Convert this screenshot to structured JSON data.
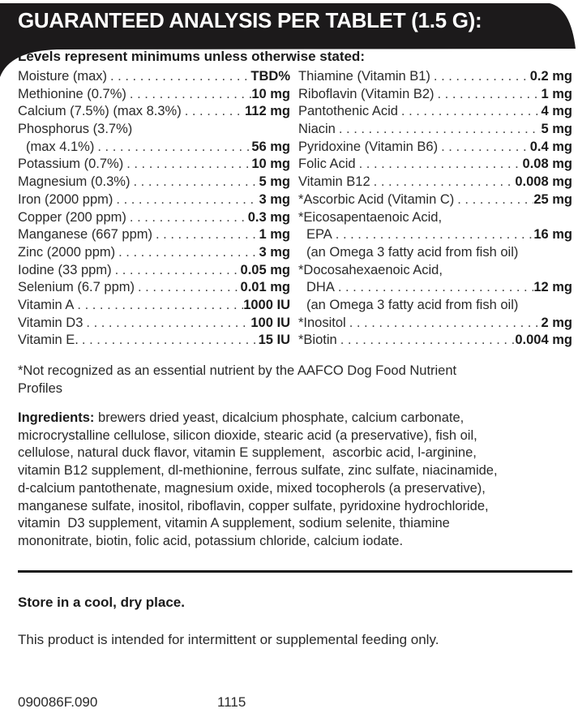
{
  "header": {
    "title": "GUARANTEED ANALYSIS PER TABLET (1.5 G):",
    "band_color": "#1c1a1b"
  },
  "subtitle": "Levels represent minimums unless otherwise stated:",
  "left_column": [
    {
      "label": "Moisture (max)",
      "value": "TBD%"
    },
    {
      "label": "Methionine (0.7%)",
      "value": "10 mg"
    },
    {
      "label": "Calcium (7.5%) (max 8.3%)",
      "value": "112 mg"
    },
    {
      "label": "Phosphorus (3.7%)",
      "value": ""
    },
    {
      "label": "(max 4.1%)",
      "value": "56 mg",
      "indent": true
    },
    {
      "label": "Potassium (0.7%)",
      "value": "10 mg"
    },
    {
      "label": "Magnesium (0.3%)",
      "value": "5 mg"
    },
    {
      "label": "Iron (2000 ppm)",
      "value": "3 mg"
    },
    {
      "label": "Copper (200 ppm)",
      "value": "0.3 mg"
    },
    {
      "label": "Manganese (667 ppm)",
      "value": "1 mg"
    },
    {
      "label": "Zinc (2000 ppm)",
      "value": "3 mg"
    },
    {
      "label": "Iodine (33 ppm)",
      "value": "0.05 mg"
    },
    {
      "label": "Selenium (6.7 ppm)",
      "value": "0.01 mg"
    },
    {
      "label": "Vitamin A",
      "value": "1000 IU"
    },
    {
      "label": "Vitamin D3",
      "value": "100 IU"
    },
    {
      "label": "Vitamin E.",
      "value": "15 IU"
    }
  ],
  "right_column": [
    {
      "label": "Thiamine (Vitamin B1)",
      "value": "0.2 mg"
    },
    {
      "label": "Riboflavin (Vitamin B2)",
      "value": "1 mg"
    },
    {
      "label": "Pantothenic Acid",
      "value": "4 mg"
    },
    {
      "label": "Niacin",
      "value": "5 mg"
    },
    {
      "label": "Pyridoxine (Vitamin B6)",
      "value": "0.4 mg"
    },
    {
      "label": "Folic Acid",
      "value": "0.08 mg"
    },
    {
      "label": "Vitamin B12",
      "value": "0.008 mg"
    },
    {
      "label": "*Ascorbic Acid (Vitamin C)",
      "value": "25 mg"
    },
    {
      "label": "*Eicosapentaenoic Acid,",
      "value": ""
    },
    {
      "label": "EPA",
      "value": "16 mg",
      "indent": true
    },
    {
      "label": "(an Omega 3 fatty acid from fish oil)",
      "value": "",
      "indent": true,
      "nodots": true
    },
    {
      "label": "*Docosahexaenoic Acid,",
      "value": ""
    },
    {
      "label": "DHA",
      "value": "12 mg",
      "indent": true
    },
    {
      "label": "(an Omega 3 fatty acid  from fish oil)",
      "value": "",
      "indent": true,
      "nodots": true
    },
    {
      "label": "*Inositol",
      "value": "2 mg"
    },
    {
      "label": "*Biotin",
      "value": "0.004 mg"
    }
  ],
  "footnote": [
    "*Not recognized as an essential nutrient by the AAFCO Dog Food Nutrient",
    "Profiles"
  ],
  "ingredients": {
    "label": "Ingredients:",
    "lines": [
      " brewers dried yeast, dicalcium phosphate, calcium carbonate,",
      "microcrystalline cellulose, silicon dioxide, stearic acid (a preservative), fish oil,",
      "cellulose, natural duck flavor, vitamin E supplement,  ascorbic acid, l-arginine,",
      "vitamin B12 supplement, dl-methionine, ferrous sulfate, zinc sulfate, niacinamide,",
      "d-calcium pantothenate, magnesium oxide, mixed tocopherols (a preservative),",
      "manganese sulfate, inositol, riboflavin, copper sulfate, pyridoxine hydrochloride,",
      "vitamin  D3 supplement, vitamin A supplement, sodium selenite, thiamine",
      "mononitrate, biotin, folic acid, potassium chloride, calcium iodate."
    ]
  },
  "storage": "Store in a cool, dry place.",
  "usage_note": "This product is intended for intermittent or supplemental feeding only.",
  "codes": {
    "lot": "090086F.090",
    "date": "1115"
  }
}
